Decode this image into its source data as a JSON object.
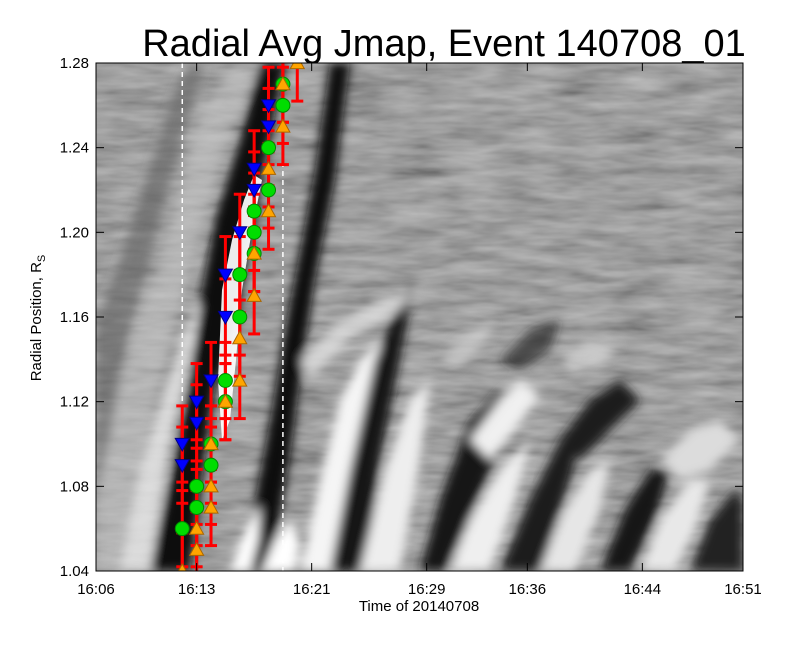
{
  "chart_data": {
    "type": "scatter",
    "title": "Radial Avg Jmap, Event 140708_01",
    "xlabel": "Time of 20140708",
    "ylabel": "Radial Position, R",
    "ylabel_subscript": "S",
    "x_tick_labels": [
      "16:06",
      "16:13",
      "16:21",
      "16:29",
      "16:36",
      "16:44",
      "16:51"
    ],
    "y_tick_labels": [
      "1.04",
      "1.08",
      "1.12",
      "1.16",
      "1.20",
      "1.24",
      "1.28"
    ],
    "xlim": [
      "16:06",
      "16:51"
    ],
    "ylim": [
      1.04,
      1.28
    ],
    "background": "grayscale running-difference radial J-map image",
    "vertical_markers": [
      "16:12",
      "16:19"
    ],
    "marker_line_color": "#ffffff",
    "series": [
      {
        "marker": "downward triangle",
        "color": "#0000ff",
        "points": [
          [
            "16:12",
            1.09
          ],
          [
            "16:12",
            1.1
          ],
          [
            "16:13",
            1.11
          ],
          [
            "16:13",
            1.12
          ],
          [
            "16:14",
            1.13
          ],
          [
            "16:15",
            1.16
          ],
          [
            "16:15",
            1.18
          ],
          [
            "16:16",
            1.2
          ],
          [
            "16:17",
            1.22
          ],
          [
            "16:17",
            1.23
          ],
          [
            "16:18",
            1.25
          ],
          [
            "16:18",
            1.26
          ]
        ]
      },
      {
        "marker": "circle",
        "color": "#00dd00",
        "points": [
          [
            "16:12",
            1.06
          ],
          [
            "16:13",
            1.07
          ],
          [
            "16:13",
            1.08
          ],
          [
            "16:14",
            1.09
          ],
          [
            "16:14",
            1.1
          ],
          [
            "16:15",
            1.12
          ],
          [
            "16:15",
            1.13
          ],
          [
            "16:16",
            1.16
          ],
          [
            "16:16",
            1.18
          ],
          [
            "16:17",
            1.19
          ],
          [
            "16:17",
            1.2
          ],
          [
            "16:17",
            1.21
          ],
          [
            "16:18",
            1.22
          ],
          [
            "16:18",
            1.24
          ],
          [
            "16:19",
            1.26
          ],
          [
            "16:19",
            1.27
          ]
        ]
      },
      {
        "marker": "upward triangle",
        "color": "#ffa500",
        "points": [
          [
            "16:12",
            1.04
          ],
          [
            "16:13",
            1.05
          ],
          [
            "16:13",
            1.06
          ],
          [
            "16:14",
            1.07
          ],
          [
            "16:14",
            1.08
          ],
          [
            "16:14",
            1.1
          ],
          [
            "16:15",
            1.12
          ],
          [
            "16:16",
            1.13
          ],
          [
            "16:16",
            1.15
          ],
          [
            "16:17",
            1.17
          ],
          [
            "16:17",
            1.19
          ],
          [
            "16:18",
            1.21
          ],
          [
            "16:18",
            1.23
          ],
          [
            "16:19",
            1.25
          ],
          [
            "16:19",
            1.27
          ],
          [
            "16:20",
            1.28
          ]
        ]
      }
    ],
    "error_bars": {
      "color": "#ff0000",
      "half_height": 0.018
    }
  }
}
